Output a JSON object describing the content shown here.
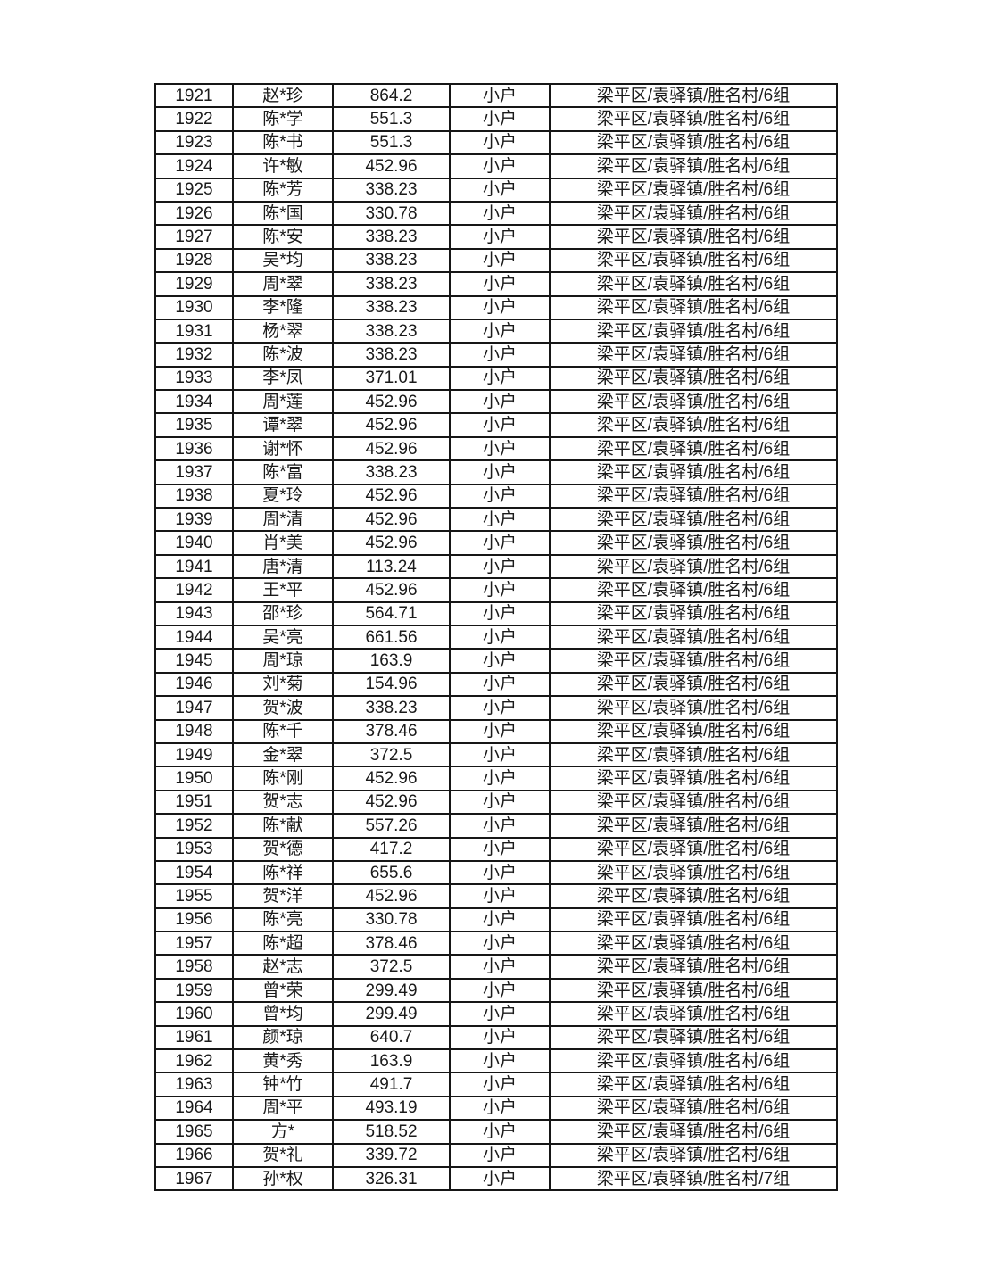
{
  "page": {
    "background_color": "#ffffff",
    "text_color": "#1a1a1a",
    "border_color": "#161616"
  },
  "table": {
    "rows": [
      [
        "1921",
        "赵*珍",
        "864.2",
        "小户",
        "梁平区/袁驿镇/胜名村/6组"
      ],
      [
        "1922",
        "陈*学",
        "551.3",
        "小户",
        "梁平区/袁驿镇/胜名村/6组"
      ],
      [
        "1923",
        "陈*书",
        "551.3",
        "小户",
        "梁平区/袁驿镇/胜名村/6组"
      ],
      [
        "1924",
        "许*敏",
        "452.96",
        "小户",
        "梁平区/袁驿镇/胜名村/6组"
      ],
      [
        "1925",
        "陈*芳",
        "338.23",
        "小户",
        "梁平区/袁驿镇/胜名村/6组"
      ],
      [
        "1926",
        "陈*国",
        "330.78",
        "小户",
        "梁平区/袁驿镇/胜名村/6组"
      ],
      [
        "1927",
        "陈*安",
        "338.23",
        "小户",
        "梁平区/袁驿镇/胜名村/6组"
      ],
      [
        "1928",
        "吴*均",
        "338.23",
        "小户",
        "梁平区/袁驿镇/胜名村/6组"
      ],
      [
        "1929",
        "周*翠",
        "338.23",
        "小户",
        "梁平区/袁驿镇/胜名村/6组"
      ],
      [
        "1930",
        "李*隆",
        "338.23",
        "小户",
        "梁平区/袁驿镇/胜名村/6组"
      ],
      [
        "1931",
        "杨*翠",
        "338.23",
        "小户",
        "梁平区/袁驿镇/胜名村/6组"
      ],
      [
        "1932",
        "陈*波",
        "338.23",
        "小户",
        "梁平区/袁驿镇/胜名村/6组"
      ],
      [
        "1933",
        "李*凤",
        "371.01",
        "小户",
        "梁平区/袁驿镇/胜名村/6组"
      ],
      [
        "1934",
        "周*莲",
        "452.96",
        "小户",
        "梁平区/袁驿镇/胜名村/6组"
      ],
      [
        "1935",
        "谭*翠",
        "452.96",
        "小户",
        "梁平区/袁驿镇/胜名村/6组"
      ],
      [
        "1936",
        "谢*怀",
        "452.96",
        "小户",
        "梁平区/袁驿镇/胜名村/6组"
      ],
      [
        "1937",
        "陈*富",
        "338.23",
        "小户",
        "梁平区/袁驿镇/胜名村/6组"
      ],
      [
        "1938",
        "夏*玲",
        "452.96",
        "小户",
        "梁平区/袁驿镇/胜名村/6组"
      ],
      [
        "1939",
        "周*清",
        "452.96",
        "小户",
        "梁平区/袁驿镇/胜名村/6组"
      ],
      [
        "1940",
        "肖*美",
        "452.96",
        "小户",
        "梁平区/袁驿镇/胜名村/6组"
      ],
      [
        "1941",
        "唐*清",
        "113.24",
        "小户",
        "梁平区/袁驿镇/胜名村/6组"
      ],
      [
        "1942",
        "王*平",
        "452.96",
        "小户",
        "梁平区/袁驿镇/胜名村/6组"
      ],
      [
        "1943",
        "邵*珍",
        "564.71",
        "小户",
        "梁平区/袁驿镇/胜名村/6组"
      ],
      [
        "1944",
        "吴*亮",
        "661.56",
        "小户",
        "梁平区/袁驿镇/胜名村/6组"
      ],
      [
        "1945",
        "周*琼",
        "163.9",
        "小户",
        "梁平区/袁驿镇/胜名村/6组"
      ],
      [
        "1946",
        "刘*菊",
        "154.96",
        "小户",
        "梁平区/袁驿镇/胜名村/6组"
      ],
      [
        "1947",
        "贺*波",
        "338.23",
        "小户",
        "梁平区/袁驿镇/胜名村/6组"
      ],
      [
        "1948",
        "陈*千",
        "378.46",
        "小户",
        "梁平区/袁驿镇/胜名村/6组"
      ],
      [
        "1949",
        "金*翠",
        "372.5",
        "小户",
        "梁平区/袁驿镇/胜名村/6组"
      ],
      [
        "1950",
        "陈*刚",
        "452.96",
        "小户",
        "梁平区/袁驿镇/胜名村/6组"
      ],
      [
        "1951",
        "贺*志",
        "452.96",
        "小户",
        "梁平区/袁驿镇/胜名村/6组"
      ],
      [
        "1952",
        "陈*献",
        "557.26",
        "小户",
        "梁平区/袁驿镇/胜名村/6组"
      ],
      [
        "1953",
        "贺*德",
        "417.2",
        "小户",
        "梁平区/袁驿镇/胜名村/6组"
      ],
      [
        "1954",
        "陈*祥",
        "655.6",
        "小户",
        "梁平区/袁驿镇/胜名村/6组"
      ],
      [
        "1955",
        "贺*洋",
        "452.96",
        "小户",
        "梁平区/袁驿镇/胜名村/6组"
      ],
      [
        "1956",
        "陈*亮",
        "330.78",
        "小户",
        "梁平区/袁驿镇/胜名村/6组"
      ],
      [
        "1957",
        "陈*超",
        "378.46",
        "小户",
        "梁平区/袁驿镇/胜名村/6组"
      ],
      [
        "1958",
        "赵*志",
        "372.5",
        "小户",
        "梁平区/袁驿镇/胜名村/6组"
      ],
      [
        "1959",
        "曾*荣",
        "299.49",
        "小户",
        "梁平区/袁驿镇/胜名村/6组"
      ],
      [
        "1960",
        "曾*均",
        "299.49",
        "小户",
        "梁平区/袁驿镇/胜名村/6组"
      ],
      [
        "1961",
        "颜*琼",
        "640.7",
        "小户",
        "梁平区/袁驿镇/胜名村/6组"
      ],
      [
        "1962",
        "黄*秀",
        "163.9",
        "小户",
        "梁平区/袁驿镇/胜名村/6组"
      ],
      [
        "1963",
        "钟*竹",
        "491.7",
        "小户",
        "梁平区/袁驿镇/胜名村/6组"
      ],
      [
        "1964",
        "周*平",
        "493.19",
        "小户",
        "梁平区/袁驿镇/胜名村/6组"
      ],
      [
        "1965",
        "方*",
        "518.52",
        "小户",
        "梁平区/袁驿镇/胜名村/6组"
      ],
      [
        "1966",
        "贺*礼",
        "339.72",
        "小户",
        "梁平区/袁驿镇/胜名村/6组"
      ],
      [
        "1967",
        "孙*权",
        "326.31",
        "小户",
        "梁平区/袁驿镇/胜名村/7组"
      ]
    ]
  }
}
